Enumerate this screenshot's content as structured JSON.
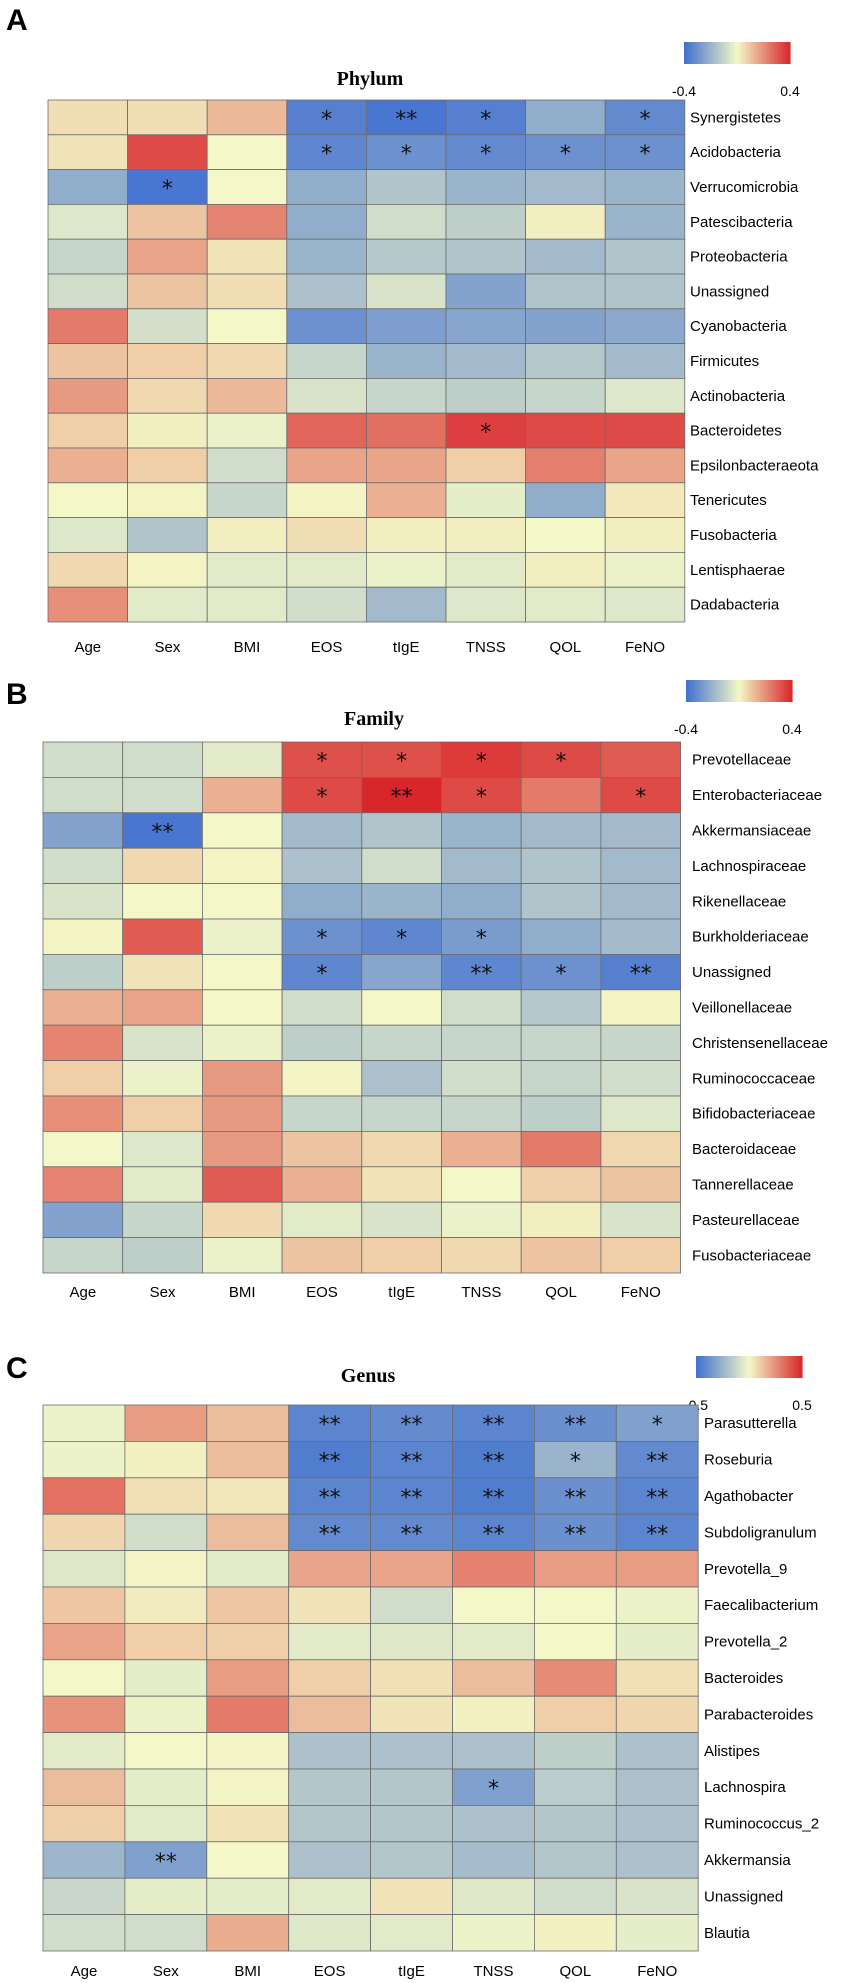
{
  "chart_data": [
    {
      "type": "heatmap",
      "panel": "A",
      "title": "Phylum",
      "columns": [
        "Age",
        "Sex",
        "BMI",
        "EOS",
        "tIgE",
        "TNSS",
        "QOL",
        "FeNO"
      ],
      "rows": [
        "Synergistetes",
        "Acidobacteria",
        "Verrucomicrobia",
        "Patescibacteria",
        "Proteobacteria",
        "Unassigned",
        "Cyanobacteria",
        "Firmicutes",
        "Actinobacteria",
        "Bacteroidetes",
        "Epsilonbacteraeota",
        "Tenericutes",
        "Fusobacteria",
        "Lentisphaerae",
        "Dadabacteria"
      ],
      "legend": {
        "min": -0.4,
        "max": 0.4,
        "min_label": "-0.4",
        "max_label": "0.4"
      },
      "values": [
        [
          0.05,
          0.05,
          0.12,
          -0.35,
          -0.38,
          -0.35,
          -0.22,
          -0.32
        ],
        [
          0.04,
          0.33,
          0.0,
          -0.33,
          -0.3,
          -0.32,
          -0.3,
          -0.3
        ],
        [
          -0.22,
          -0.38,
          0.0,
          -0.22,
          -0.15,
          -0.2,
          -0.18,
          -0.2
        ],
        [
          -0.05,
          0.1,
          0.22,
          -0.22,
          -0.08,
          -0.12,
          0.02,
          -0.2
        ],
        [
          -0.1,
          0.16,
          0.04,
          -0.2,
          -0.14,
          -0.15,
          -0.18,
          -0.15
        ],
        [
          -0.08,
          0.1,
          0.05,
          -0.16,
          -0.06,
          -0.25,
          -0.15,
          -0.15
        ],
        [
          0.24,
          -0.07,
          0.0,
          -0.3,
          -0.26,
          -0.24,
          -0.25,
          -0.23
        ],
        [
          0.1,
          0.08,
          0.06,
          -0.1,
          -0.2,
          -0.18,
          -0.14,
          -0.18
        ],
        [
          0.18,
          0.06,
          0.12,
          -0.06,
          -0.1,
          -0.12,
          -0.1,
          -0.05
        ],
        [
          0.08,
          0.02,
          -0.02,
          0.28,
          0.26,
          0.35,
          0.33,
          0.33
        ],
        [
          0.14,
          0.08,
          -0.08,
          0.16,
          0.16,
          0.08,
          0.23,
          0.16
        ],
        [
          0.0,
          0.01,
          -0.1,
          0.01,
          0.14,
          -0.03,
          -0.22,
          0.03
        ],
        [
          -0.05,
          -0.15,
          0.02,
          0.05,
          0.02,
          0.02,
          0.0,
          0.02
        ],
        [
          0.06,
          0.01,
          -0.04,
          -0.04,
          -0.02,
          -0.04,
          0.02,
          -0.02
        ],
        [
          0.2,
          -0.04,
          -0.04,
          -0.08,
          -0.18,
          -0.05,
          -0.04,
          -0.05
        ]
      ],
      "significance": [
        [
          "",
          "",
          "",
          "*",
          "**",
          "*",
          "",
          "*"
        ],
        [
          "",
          "",
          "",
          "*",
          "*",
          "*",
          "*",
          "*"
        ],
        [
          "",
          "*",
          "",
          "",
          "",
          "",
          "",
          ""
        ],
        [
          "",
          "",
          "",
          "",
          "",
          "",
          "",
          ""
        ],
        [
          "",
          "",
          "",
          "",
          "",
          "",
          "",
          ""
        ],
        [
          "",
          "",
          "",
          "",
          "",
          "",
          "",
          ""
        ],
        [
          "",
          "",
          "",
          "",
          "",
          "",
          "",
          ""
        ],
        [
          "",
          "",
          "",
          "",
          "",
          "",
          "",
          ""
        ],
        [
          "",
          "",
          "",
          "",
          "",
          "",
          "",
          ""
        ],
        [
          "",
          "",
          "",
          "",
          "",
          "*",
          "",
          ""
        ],
        [
          "",
          "",
          "",
          "",
          "",
          "",
          "",
          ""
        ],
        [
          "",
          "",
          "",
          "",
          "",
          "",
          "",
          ""
        ],
        [
          "",
          "",
          "",
          "",
          "",
          "",
          "",
          ""
        ],
        [
          "",
          "",
          "",
          "",
          "",
          "",
          "",
          ""
        ],
        [
          "",
          "",
          "",
          "",
          "",
          "",
          "",
          ""
        ]
      ]
    },
    {
      "type": "heatmap",
      "panel": "B",
      "title": "Family",
      "columns": [
        "Age",
        "Sex",
        "BMI",
        "EOS",
        "tIgE",
        "TNSS",
        "QOL",
        "FeNO"
      ],
      "rows": [
        "Prevotellaceae",
        "Enterobacteriaceae",
        "Akkermansiaceae",
        "Lachnospiraceae",
        "Rikenellaceae",
        "Burkholderiaceae",
        "Unassigned",
        "Veillonellaceae",
        "Christensenellaceae",
        "Ruminococcaceae",
        "Bifidobacteriaceae",
        "Bacteroidaceae",
        "Tannerellaceae",
        "Pasteurellaceae",
        "Fusobacteriaceae"
      ],
      "legend": {
        "min": -0.4,
        "max": 0.4,
        "min_label": "-0.4",
        "max_label": "0.4"
      },
      "values": [
        [
          -0.08,
          -0.08,
          -0.04,
          0.32,
          0.32,
          0.36,
          0.33,
          0.3
        ],
        [
          -0.08,
          -0.08,
          0.14,
          0.33,
          0.4,
          0.33,
          0.24,
          0.33
        ],
        [
          -0.25,
          -0.38,
          0.0,
          -0.18,
          -0.15,
          -0.2,
          -0.18,
          -0.18
        ],
        [
          -0.08,
          0.06,
          0.01,
          -0.16,
          -0.08,
          -0.18,
          -0.15,
          -0.18
        ],
        [
          -0.06,
          0.0,
          0.0,
          -0.22,
          -0.2,
          -0.22,
          -0.15,
          -0.18
        ],
        [
          0.01,
          0.3,
          -0.02,
          -0.3,
          -0.33,
          -0.27,
          -0.22,
          -0.18
        ],
        [
          -0.12,
          0.04,
          0.0,
          -0.33,
          -0.24,
          -0.33,
          -0.3,
          -0.35
        ],
        [
          0.14,
          0.16,
          0.0,
          -0.08,
          0.0,
          -0.08,
          -0.14,
          0.01
        ],
        [
          0.22,
          -0.06,
          -0.02,
          -0.12,
          -0.1,
          -0.1,
          -0.1,
          -0.1
        ],
        [
          0.08,
          -0.02,
          0.18,
          0.01,
          -0.16,
          -0.08,
          -0.1,
          -0.08
        ],
        [
          0.2,
          0.08,
          0.18,
          -0.1,
          -0.1,
          -0.1,
          -0.12,
          -0.05
        ],
        [
          0.0,
          -0.05,
          0.18,
          0.1,
          0.06,
          0.14,
          0.24,
          0.06
        ],
        [
          0.22,
          -0.04,
          0.3,
          0.14,
          0.04,
          0.0,
          0.08,
          0.1
        ],
        [
          -0.25,
          -0.1,
          0.06,
          -0.04,
          -0.06,
          -0.02,
          0.02,
          -0.06
        ],
        [
          -0.1,
          -0.12,
          -0.02,
          0.1,
          0.08,
          0.06,
          0.1,
          0.08
        ]
      ],
      "significance": [
        [
          "",
          "",
          "",
          "*",
          "*",
          "*",
          "*",
          ""
        ],
        [
          "",
          "",
          "",
          "*",
          "**",
          "*",
          "",
          "*"
        ],
        [
          "",
          "**",
          "",
          "",
          "",
          "",
          "",
          ""
        ],
        [
          "",
          "",
          "",
          "",
          "",
          "",
          "",
          ""
        ],
        [
          "",
          "",
          "",
          "",
          "",
          "",
          "",
          ""
        ],
        [
          "",
          "",
          "",
          "*",
          "*",
          "*",
          "",
          ""
        ],
        [
          "",
          "",
          "",
          "*",
          "",
          "**",
          "*",
          "**"
        ],
        [
          "",
          "",
          "",
          "",
          "",
          "",
          "",
          ""
        ],
        [
          "",
          "",
          "",
          "",
          "",
          "",
          "",
          ""
        ],
        [
          "",
          "",
          "",
          "",
          "",
          "",
          "",
          ""
        ],
        [
          "",
          "",
          "",
          "",
          "",
          "",
          "",
          ""
        ],
        [
          "",
          "",
          "",
          "",
          "",
          "",
          "",
          ""
        ],
        [
          "",
          "",
          "",
          "",
          "",
          "",
          "",
          ""
        ],
        [
          "",
          "",
          "",
          "",
          "",
          "",
          "",
          ""
        ],
        [
          "",
          "",
          "",
          "",
          "",
          "",
          "",
          ""
        ]
      ]
    },
    {
      "type": "heatmap",
      "panel": "C",
      "title": "Genus",
      "columns": [
        "Age",
        "Sex",
        "BMI",
        "EOS",
        "tIgE",
        "TNSS",
        "QOL",
        "FeNO"
      ],
      "rows": [
        "Parasutterella",
        "Roseburia",
        "Agathobacter",
        "Subdoligranulum",
        "Prevotella_9",
        "Faecalibacterium",
        "Prevotella_2",
        "Bacteroides",
        "Parabacteroides",
        "Alistipes",
        "Lachnospira",
        "Ruminococcus_2",
        "Akkermansia",
        "Unassigned",
        "Blautia"
      ],
      "legend": {
        "min": -0.5,
        "max": 0.5,
        "min_label": "-0.5",
        "max_label": "0.5"
      },
      "values": [
        [
          -0.02,
          0.22,
          0.14,
          -0.42,
          -0.4,
          -0.42,
          -0.38,
          -0.32
        ],
        [
          -0.02,
          0.02,
          0.14,
          -0.45,
          -0.42,
          -0.45,
          -0.25,
          -0.4
        ],
        [
          0.32,
          0.06,
          0.04,
          -0.42,
          -0.42,
          -0.45,
          -0.38,
          -0.42
        ],
        [
          0.08,
          -0.1,
          0.14,
          -0.4,
          -0.4,
          -0.42,
          -0.38,
          -0.42
        ],
        [
          -0.06,
          0.01,
          -0.05,
          0.2,
          0.2,
          0.28,
          0.22,
          0.22
        ],
        [
          0.12,
          0.03,
          0.12,
          0.05,
          -0.1,
          0.0,
          0.0,
          -0.02
        ],
        [
          0.2,
          0.1,
          0.1,
          -0.05,
          -0.06,
          -0.05,
          0.0,
          -0.04
        ],
        [
          0.0,
          -0.04,
          0.22,
          0.1,
          0.06,
          0.14,
          0.26,
          0.06
        ],
        [
          0.24,
          -0.02,
          0.3,
          0.14,
          0.05,
          0.02,
          0.1,
          0.08
        ],
        [
          -0.05,
          0.0,
          0.01,
          -0.2,
          -0.2,
          -0.2,
          -0.15,
          -0.2
        ],
        [
          0.14,
          -0.04,
          0.01,
          -0.18,
          -0.18,
          -0.32,
          -0.16,
          -0.2
        ],
        [
          0.1,
          -0.05,
          0.05,
          -0.18,
          -0.18,
          -0.2,
          -0.18,
          -0.2
        ],
        [
          -0.24,
          -0.32,
          0.0,
          -0.2,
          -0.18,
          -0.22,
          -0.18,
          -0.2
        ],
        [
          -0.12,
          -0.04,
          -0.04,
          -0.05,
          0.05,
          -0.06,
          -0.1,
          -0.08
        ],
        [
          -0.1,
          -0.1,
          0.18,
          -0.06,
          -0.05,
          -0.02,
          0.02,
          -0.04
        ]
      ],
      "significance": [
        [
          "",
          "",
          "",
          "**",
          "**",
          "**",
          "**",
          "*"
        ],
        [
          "",
          "",
          "",
          "**",
          "**",
          "**",
          "*",
          "**"
        ],
        [
          "",
          "",
          "",
          "**",
          "**",
          "**",
          "**",
          "**"
        ],
        [
          "",
          "",
          "",
          "**",
          "**",
          "**",
          "**",
          "**"
        ],
        [
          "",
          "",
          "",
          "",
          "",
          "",
          "",
          ""
        ],
        [
          "",
          "",
          "",
          "",
          "",
          "",
          "",
          ""
        ],
        [
          "",
          "",
          "",
          "",
          "",
          "",
          "",
          ""
        ],
        [
          "",
          "",
          "",
          "",
          "",
          "",
          "",
          ""
        ],
        [
          "",
          "",
          "",
          "",
          "",
          "",
          "",
          ""
        ],
        [
          "",
          "",
          "",
          "",
          "",
          "",
          "",
          ""
        ],
        [
          "",
          "",
          "",
          "",
          "",
          "*",
          "",
          ""
        ],
        [
          "",
          "",
          "",
          "",
          "",
          "",
          "",
          ""
        ],
        [
          "",
          "**",
          "",
          "",
          "",
          "",
          "",
          ""
        ],
        [
          "",
          "",
          "",
          "",
          "",
          "",
          "",
          ""
        ],
        [
          "",
          "",
          "",
          "",
          "",
          "",
          "",
          ""
        ]
      ]
    }
  ],
  "colors": {
    "low": "#3f6fd0",
    "mid": "#f4f8c8",
    "high": "#d9262a",
    "grid": "#6b6b6b"
  }
}
